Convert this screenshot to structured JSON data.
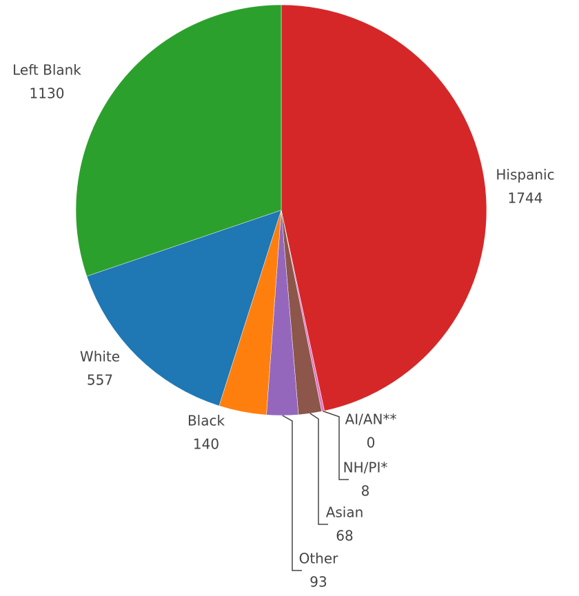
{
  "chart_data": {
    "type": "pie",
    "categories": [
      "Hispanic",
      "AI/AN**",
      "NH/PI*",
      "Asian",
      "Other",
      "Black",
      "White",
      "Left Blank"
    ],
    "values": [
      1744,
      0,
      8,
      68,
      93,
      140,
      557,
      1130
    ],
    "colors": [
      "#d62728",
      "#7f7f7f",
      "#e377c2",
      "#8c564b",
      "#9467bd",
      "#ff7f0e",
      "#1f77b4",
      "#2ca02c"
    ]
  }
}
